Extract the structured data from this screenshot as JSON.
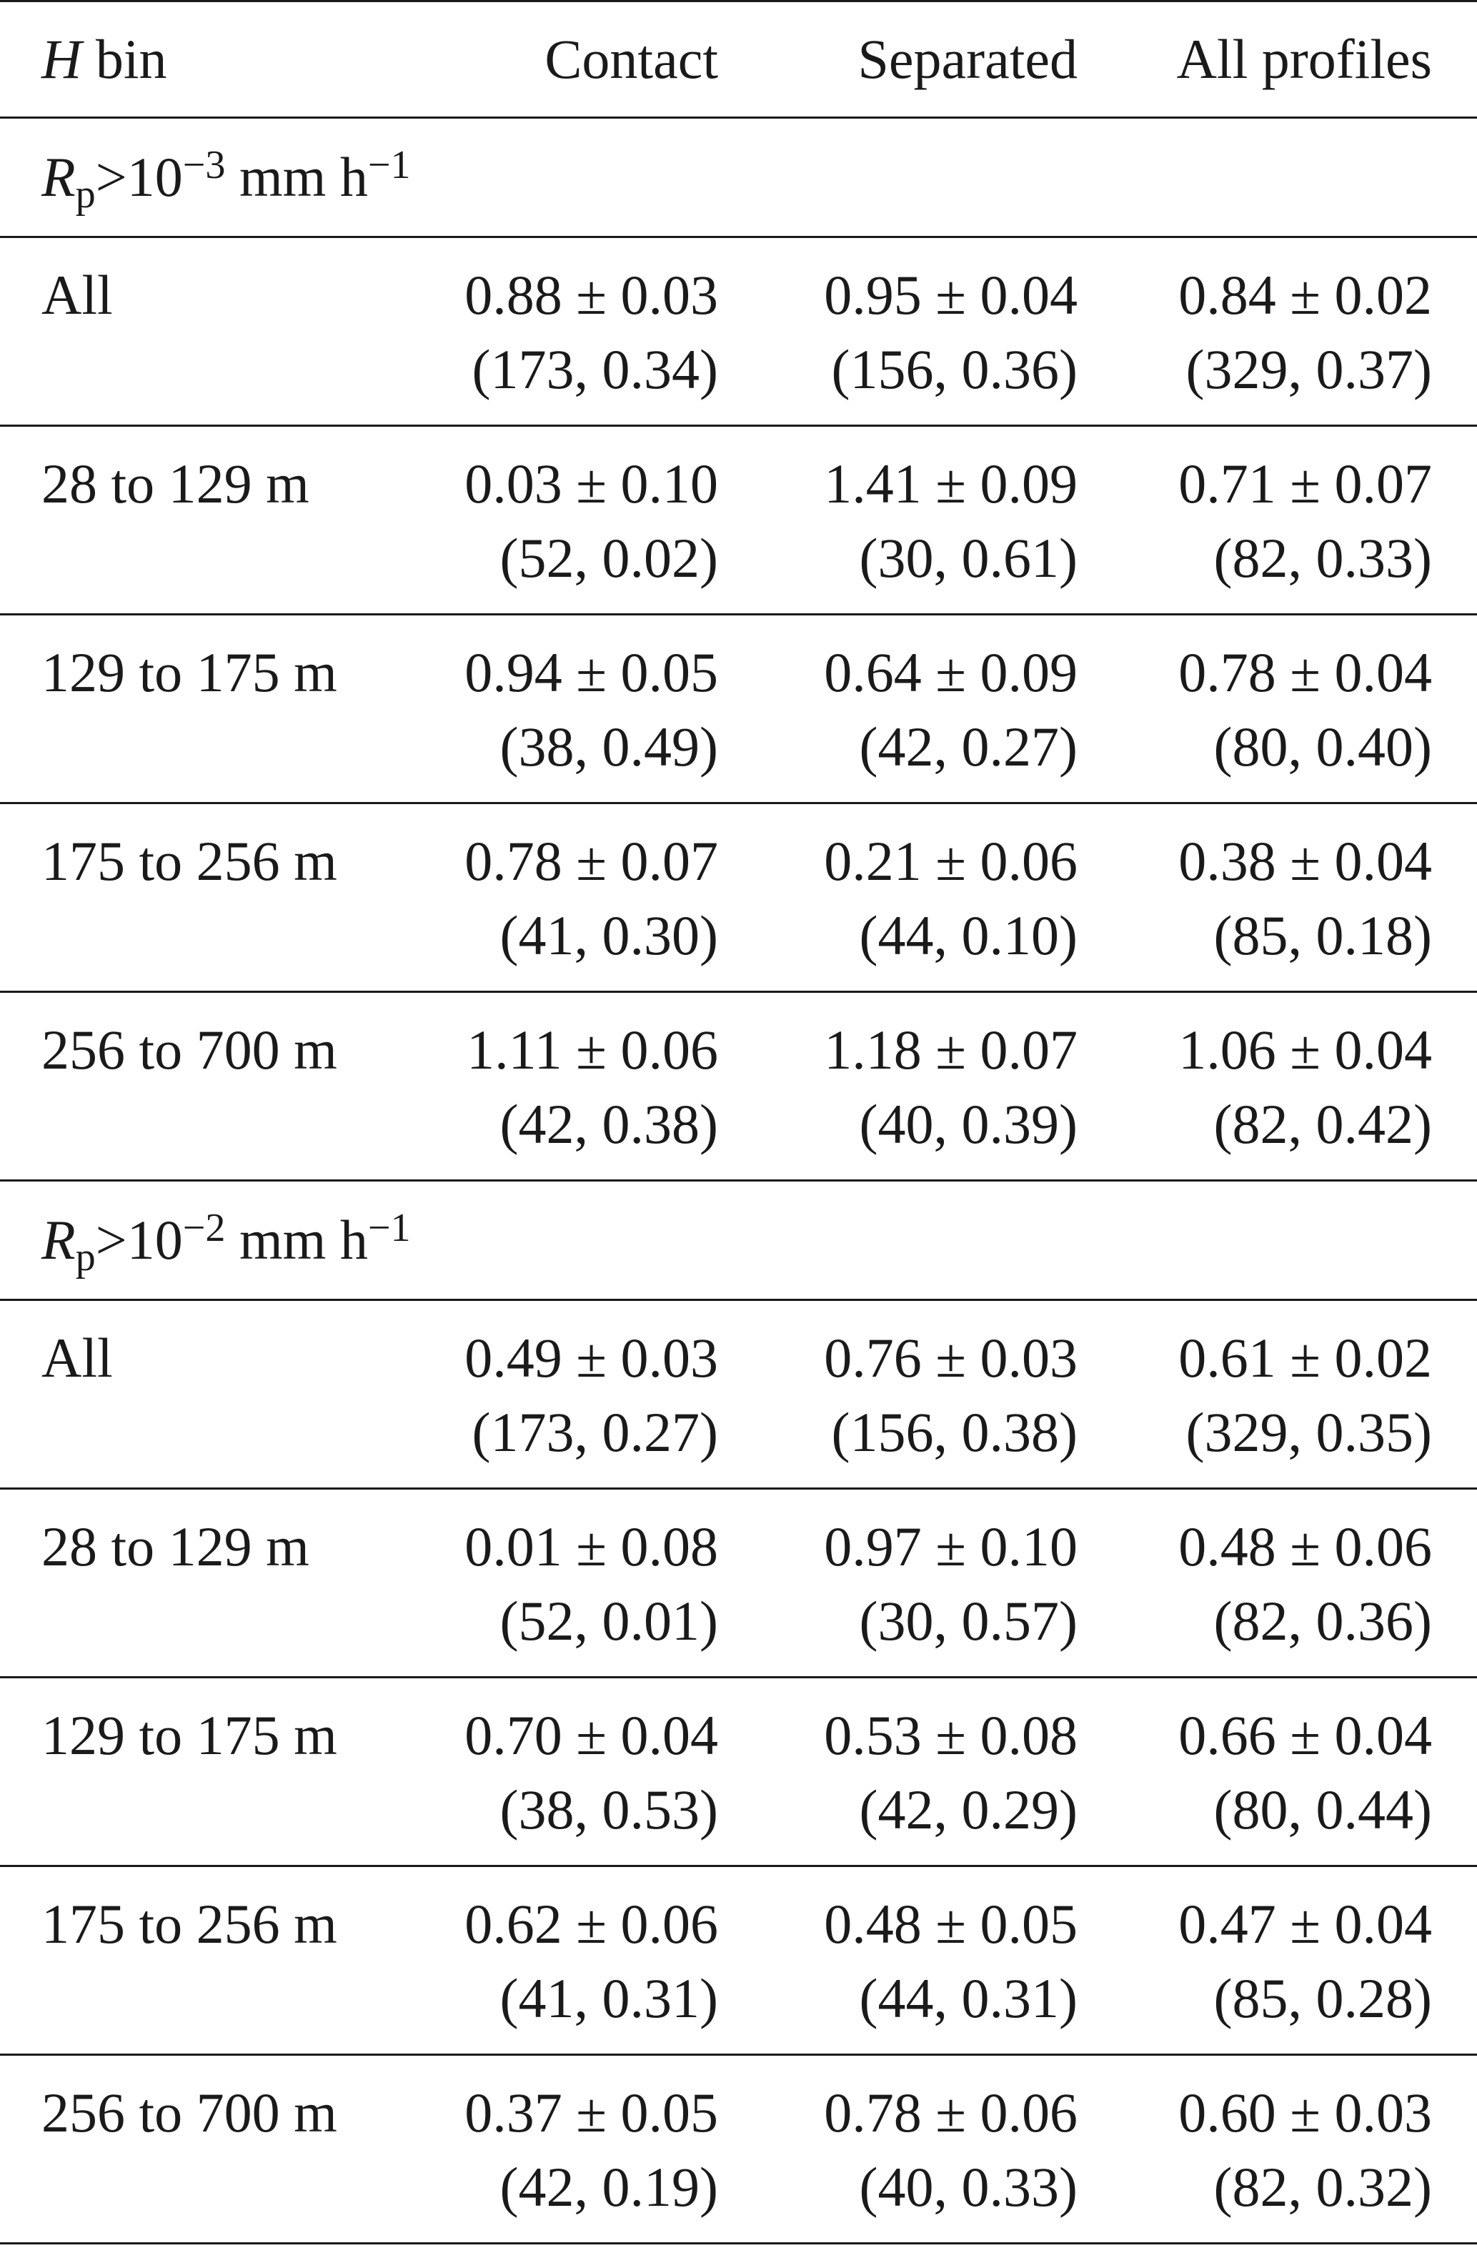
{
  "header": {
    "col_h_var": "H",
    "col_h_suffix": "bin",
    "columns": [
      "Contact",
      "Separated",
      "All profiles"
    ]
  },
  "sections": [
    {
      "label_var": "R",
      "label_sub": "p",
      "label_gt": ">10",
      "label_exp": "−3",
      "label_unit": "mm h",
      "label_unit_exp": "−1",
      "rows": [
        {
          "bin": "All",
          "cells": [
            {
              "value": "0.88 ± 0.03",
              "detail": "(173, 0.34)"
            },
            {
              "value": "0.95 ± 0.04",
              "detail": "(156, 0.36)"
            },
            {
              "value": "0.84 ± 0.02",
              "detail": "(329, 0.37)"
            }
          ]
        },
        {
          "bin": "28 to 129 m",
          "cells": [
            {
              "value": "0.03 ± 0.10",
              "detail": "(52, 0.02)"
            },
            {
              "value": "1.41 ± 0.09",
              "detail": "(30, 0.61)"
            },
            {
              "value": "0.71 ± 0.07",
              "detail": "(82, 0.33)"
            }
          ]
        },
        {
          "bin": "129 to 175 m",
          "cells": [
            {
              "value": "0.94 ± 0.05",
              "detail": "(38, 0.49)"
            },
            {
              "value": "0.64 ± 0.09",
              "detail": "(42, 0.27)"
            },
            {
              "value": "0.78 ± 0.04",
              "detail": "(80, 0.40)"
            }
          ]
        },
        {
          "bin": "175 to 256 m",
          "cells": [
            {
              "value": "0.78 ± 0.07",
              "detail": "(41, 0.30)"
            },
            {
              "value": "0.21 ± 0.06",
              "detail": "(44, 0.10)"
            },
            {
              "value": "0.38 ± 0.04",
              "detail": "(85, 0.18)"
            }
          ]
        },
        {
          "bin": "256 to 700 m",
          "cells": [
            {
              "value": "1.11 ± 0.06",
              "detail": "(42, 0.38)"
            },
            {
              "value": "1.18 ± 0.07",
              "detail": "(40, 0.39)"
            },
            {
              "value": "1.06 ± 0.04",
              "detail": "(82, 0.42)"
            }
          ]
        }
      ]
    },
    {
      "label_var": "R",
      "label_sub": "p",
      "label_gt": ">10",
      "label_exp": "−2",
      "label_unit": "mm h",
      "label_unit_exp": "−1",
      "rows": [
        {
          "bin": "All",
          "cells": [
            {
              "value": "0.49 ± 0.03",
              "detail": "(173, 0.27)"
            },
            {
              "value": "0.76 ± 0.03",
              "detail": "(156, 0.38)"
            },
            {
              "value": "0.61 ± 0.02",
              "detail": "(329, 0.35)"
            }
          ]
        },
        {
          "bin": "28 to 129 m",
          "cells": [
            {
              "value": "0.01 ± 0.08",
              "detail": "(52, 0.01)"
            },
            {
              "value": "0.97 ± 0.10",
              "detail": "(30, 0.57)"
            },
            {
              "value": "0.48 ± 0.06",
              "detail": "(82, 0.36)"
            }
          ]
        },
        {
          "bin": "129 to 175 m",
          "cells": [
            {
              "value": "0.70 ± 0.04",
              "detail": "(38, 0.53)"
            },
            {
              "value": "0.53 ± 0.08",
              "detail": "(42, 0.29)"
            },
            {
              "value": "0.66 ± 0.04",
              "detail": "(80, 0.44)"
            }
          ]
        },
        {
          "bin": "175 to 256 m",
          "cells": [
            {
              "value": "0.62 ± 0.06",
              "detail": "(41, 0.31)"
            },
            {
              "value": "0.48 ± 0.05",
              "detail": "(44, 0.31)"
            },
            {
              "value": "0.47 ± 0.04",
              "detail": "(85, 0.28)"
            }
          ]
        },
        {
          "bin": "256 to 700 m",
          "cells": [
            {
              "value": "0.37 ± 0.05",
              "detail": "(42, 0.19)"
            },
            {
              "value": "0.78 ± 0.06",
              "detail": "(40, 0.33)"
            },
            {
              "value": "0.60 ± 0.03",
              "detail": "(82, 0.32)"
            }
          ]
        }
      ]
    }
  ]
}
